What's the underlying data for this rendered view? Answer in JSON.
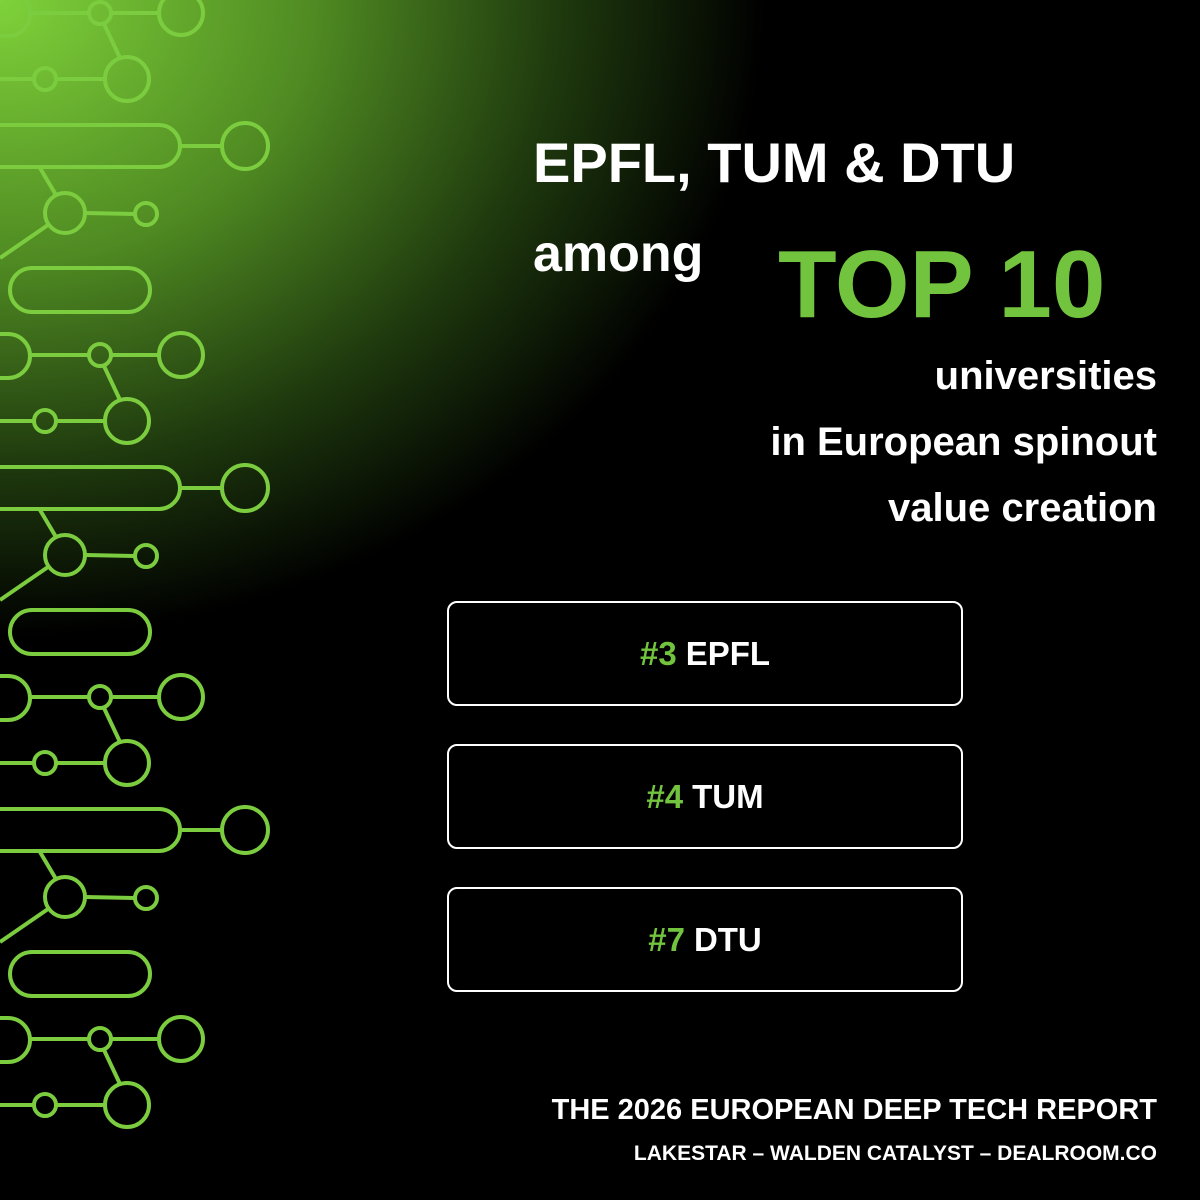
{
  "headline": {
    "line1": "EPFL, TUM & DTU",
    "prefix": "among",
    "highlight": "TOP 10",
    "lines": [
      "universities",
      "in European spinout",
      "value creation"
    ]
  },
  "rankings": [
    {
      "rank": "#3",
      "name": "EPFL"
    },
    {
      "rank": "#4",
      "name": "TUM"
    },
    {
      "rank": "#7",
      "name": "DTU"
    }
  ],
  "footer": {
    "title": "THE 2026 EUROPEAN DEEP TECH REPORT",
    "credits": "LAKESTAR – WALDEN CATALYST – DEALROOM.CO"
  }
}
